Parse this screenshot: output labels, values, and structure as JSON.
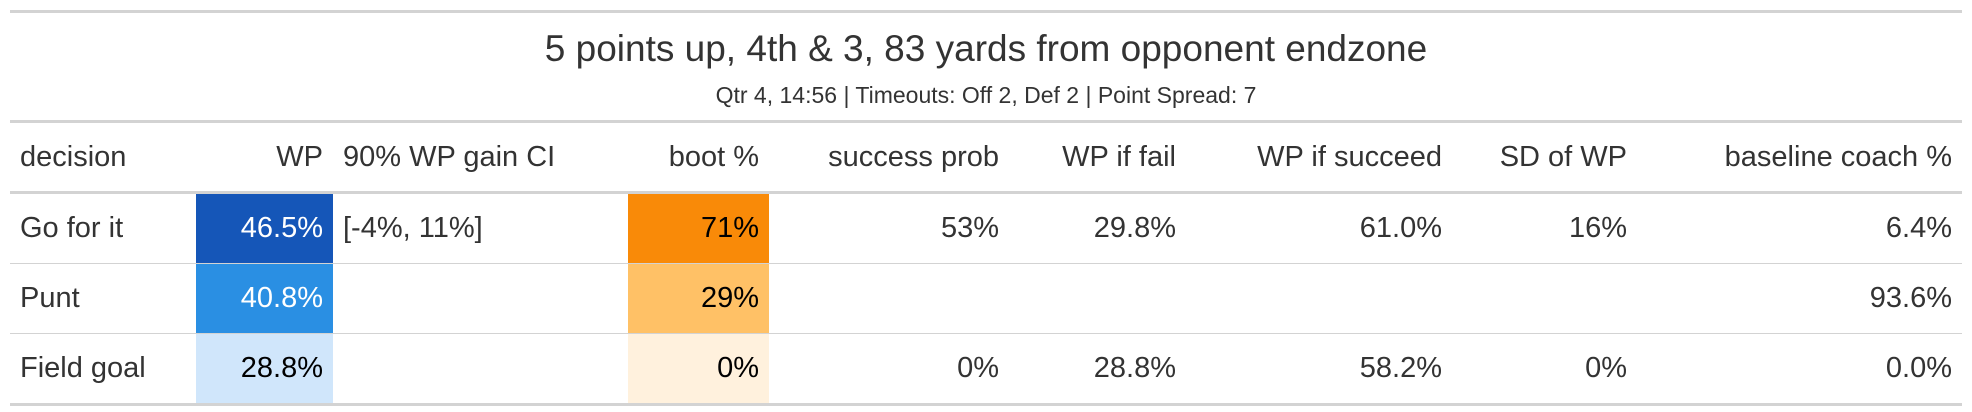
{
  "table": {
    "title": "5 points up, 4th & 3, 83 yards from opponent endzone",
    "subtitle": "Qtr 4, 14:56 | Timeouts: Off 2, Def 2 | Point Spread: 7",
    "columns": {
      "decision": "decision",
      "wp": "WP",
      "ci": "90% WP gain CI",
      "boot": "boot %",
      "success_prob": "success prob",
      "wp_fail": "WP if fail",
      "wp_succeed": "WP if succeed",
      "sd_wp": "SD of WP",
      "baseline": "baseline coach %"
    },
    "rows": [
      {
        "decision": "Go for it",
        "wp": "46.5%",
        "ci": "[-4%, 11%]",
        "boot": "71%",
        "success_prob": "53%",
        "wp_fail": "29.8%",
        "wp_succeed": "61.0%",
        "sd_wp": "16%",
        "baseline": "6.4%"
      },
      {
        "decision": "Punt",
        "wp": "40.8%",
        "ci": "",
        "boot": "29%",
        "success_prob": "",
        "wp_fail": "",
        "wp_succeed": "",
        "sd_wp": "",
        "baseline": "93.6%"
      },
      {
        "decision": "Field goal",
        "wp": "28.8%",
        "ci": "",
        "boot": "0%",
        "success_prob": "0%",
        "wp_fail": "28.8%",
        "wp_succeed": "58.2%",
        "sd_wp": "0%",
        "baseline": "0.0%"
      }
    ]
  },
  "colors": {
    "wp_fill": [
      "#1556b8",
      "#2a8fe3",
      "#d0e6fb"
    ],
    "boot_fill": [
      "#f98a08",
      "#ffc166",
      "#fff1dd"
    ],
    "rule": "#d3d3d3",
    "text": "#333333"
  }
}
